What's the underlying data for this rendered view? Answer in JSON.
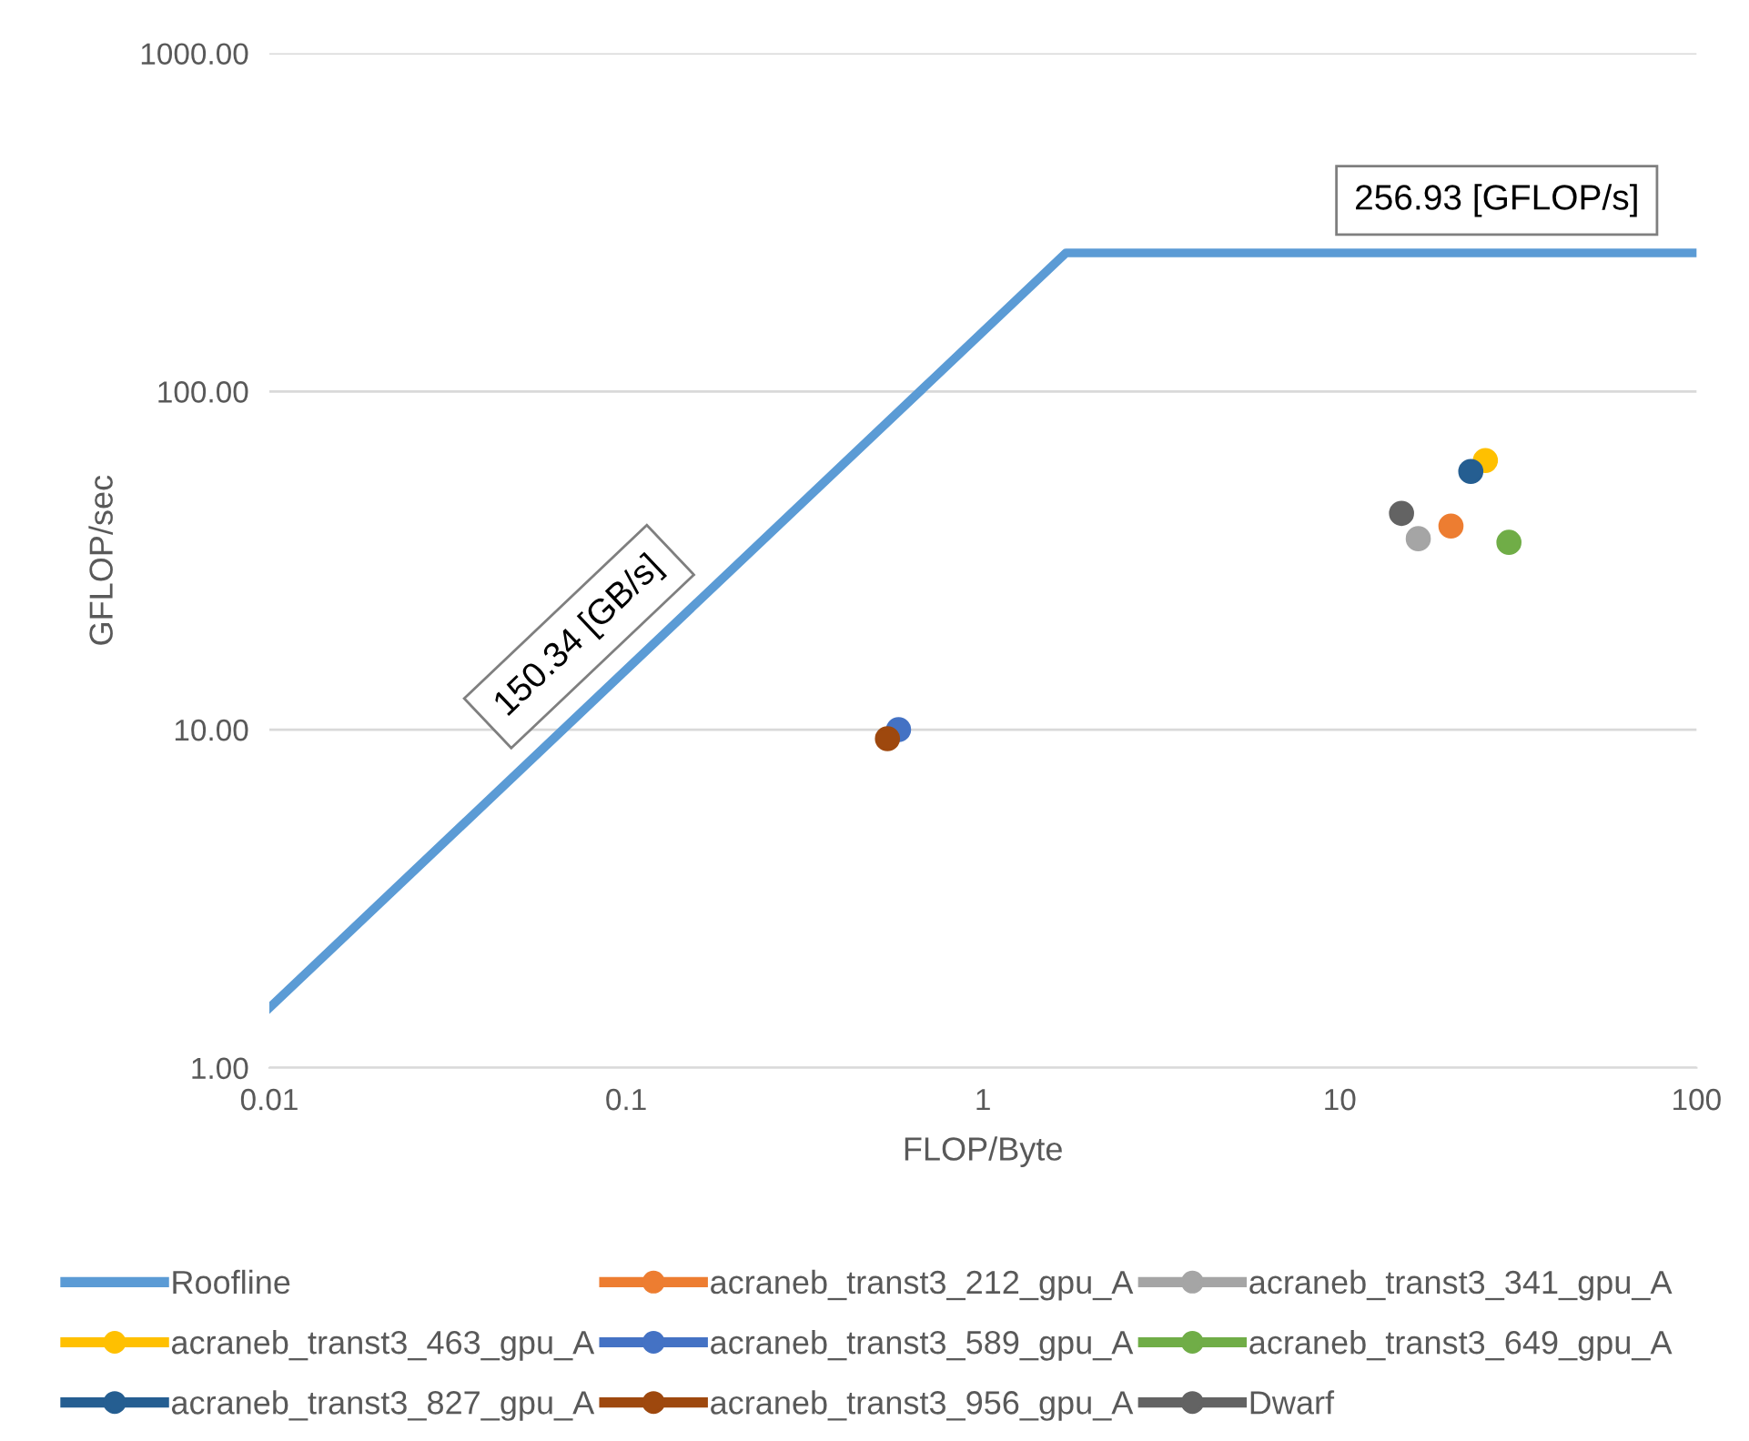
{
  "chart_data": {
    "type": "scatter",
    "xlabel": "FLOP/Byte",
    "ylabel": "GFLOP/sec",
    "log": "xy",
    "xlim": [
      0.01,
      100
    ],
    "xticks": [
      0.01,
      0.1,
      1,
      10,
      100
    ],
    "ylim": [
      1,
      1000
    ],
    "yticks": [
      {
        "value": 1,
        "label": "1.00"
      },
      {
        "value": 10,
        "label": "10.00"
      },
      {
        "value": 100,
        "label": "100.00"
      },
      {
        "value": 1000,
        "label": "1000.00"
      }
    ],
    "grid": "y",
    "legend": "bottom",
    "marker": "circle",
    "series": [
      {
        "name": "Roofline",
        "type": "line",
        "marker": "none",
        "color": "#5b9bd5",
        "x": [
          0.01,
          1.709,
          100
        ],
        "values": [
          1.5034,
          256.93,
          256.93
        ]
      },
      {
        "name": "acraneb_transt3_212_gpu_A",
        "color": "#ed7d31",
        "x": [
          20.5
        ],
        "values": [
          40.0
        ]
      },
      {
        "name": "acraneb_transt3_341_gpu_A",
        "color": "#a5a5a5",
        "x": [
          16.6
        ],
        "values": [
          36.7
        ]
      },
      {
        "name": "acraneb_transt3_463_gpu_A",
        "color": "#ffc000",
        "x": [
          25.6
        ],
        "values": [
          62.5
        ]
      },
      {
        "name": "acraneb_transt3_589_gpu_A",
        "color": "#4472c4",
        "x": [
          0.58
        ],
        "values": [
          10.0
        ]
      },
      {
        "name": "acraneb_transt3_649_gpu_A",
        "color": "#70ad47",
        "x": [
          29.8
        ],
        "values": [
          35.8
        ]
      },
      {
        "name": "acraneb_transt3_827_gpu_A",
        "color": "#255e91",
        "x": [
          23.3
        ],
        "values": [
          58.0
        ]
      },
      {
        "name": "acraneb_transt3_956_gpu_A",
        "color": "#9e480e",
        "x": [
          0.54
        ],
        "values": [
          9.4
        ]
      },
      {
        "name": "Dwarf",
        "color": "#636363",
        "x": [
          14.9
        ],
        "values": [
          43.6
        ]
      }
    ],
    "annotations": [
      "256.93 [GFLOP/s]",
      "150.34 [GB/s]"
    ]
  }
}
